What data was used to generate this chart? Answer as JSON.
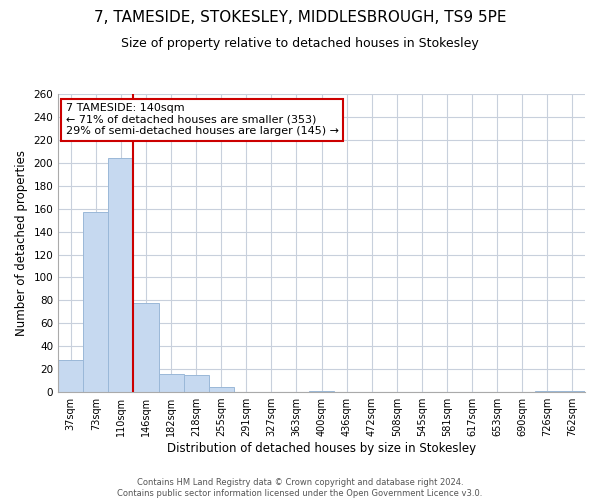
{
  "title": "7, TAMESIDE, STOKESLEY, MIDDLESBROUGH, TS9 5PE",
  "subtitle": "Size of property relative to detached houses in Stokesley",
  "xlabel": "Distribution of detached houses by size in Stokesley",
  "ylabel": "Number of detached properties",
  "bar_color": "#c6d9f0",
  "bar_edge_color": "#9ab8d8",
  "bin_labels": [
    "37sqm",
    "73sqm",
    "110sqm",
    "146sqm",
    "182sqm",
    "218sqm",
    "255sqm",
    "291sqm",
    "327sqm",
    "363sqm",
    "400sqm",
    "436sqm",
    "472sqm",
    "508sqm",
    "545sqm",
    "581sqm",
    "617sqm",
    "653sqm",
    "690sqm",
    "726sqm",
    "762sqm"
  ],
  "bar_heights": [
    28,
    157,
    204,
    78,
    16,
    15,
    4,
    0,
    0,
    0,
    1,
    0,
    0,
    0,
    0,
    0,
    0,
    0,
    0,
    1,
    1
  ],
  "vline_x": 3,
  "vline_color": "#cc0000",
  "ylim": [
    0,
    260
  ],
  "yticks": [
    0,
    20,
    40,
    60,
    80,
    100,
    120,
    140,
    160,
    180,
    200,
    220,
    240,
    260
  ],
  "annotation_title": "7 TAMESIDE: 140sqm",
  "annotation_line1": "← 71% of detached houses are smaller (353)",
  "annotation_line2": "29% of semi-detached houses are larger (145) →",
  "annotation_box_color": "#ffffff",
  "annotation_box_edge": "#cc0000",
  "footer_line1": "Contains HM Land Registry data © Crown copyright and database right 2024.",
  "footer_line2": "Contains public sector information licensed under the Open Government Licence v3.0.",
  "background_color": "#ffffff",
  "grid_color": "#c8d0dc",
  "title_fontsize": 11,
  "subtitle_fontsize": 9
}
